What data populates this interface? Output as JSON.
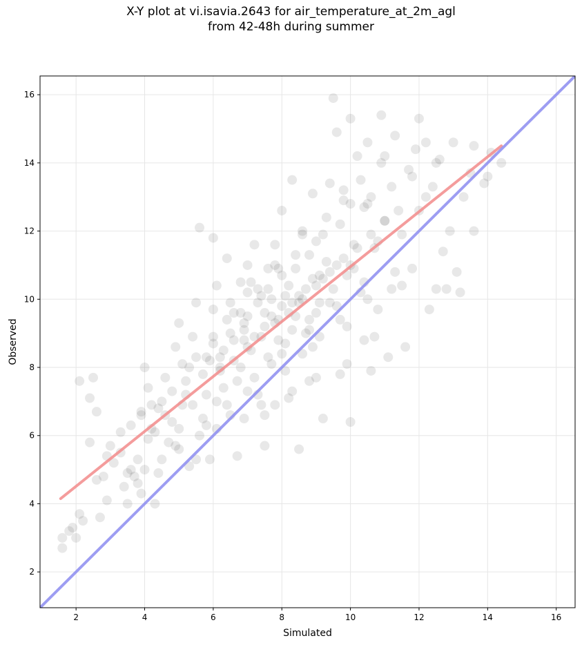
{
  "chart_data": {
    "type": "scatter",
    "title": "X-Y plot at vi.isavia.2643 for air_temperature_at_2m_agl\nfrom 42-48h during summer",
    "xlabel": "Simulated",
    "ylabel": "Observed",
    "xlim": [
      0.95,
      16.55
    ],
    "ylim": [
      0.95,
      16.55
    ],
    "xticks": [
      2,
      4,
      6,
      8,
      10,
      12,
      14,
      16
    ],
    "yticks": [
      2,
      4,
      6,
      8,
      10,
      12,
      14,
      16
    ],
    "grid": true,
    "point_color": "#000000",
    "point_opacity": 0.09,
    "series": [
      {
        "type": "scatter",
        "points": [
          [
            1.6,
            2.7
          ],
          [
            1.6,
            3.0
          ],
          [
            1.8,
            3.2
          ],
          [
            1.9,
            3.3
          ],
          [
            2.0,
            3.0
          ],
          [
            2.1,
            3.7
          ],
          [
            2.2,
            3.5
          ],
          [
            2.1,
            7.6
          ],
          [
            2.4,
            7.1
          ],
          [
            2.5,
            7.7
          ],
          [
            2.6,
            6.7
          ],
          [
            2.4,
            5.8
          ],
          [
            2.6,
            4.7
          ],
          [
            2.7,
            3.6
          ],
          [
            2.8,
            4.8
          ],
          [
            2.9,
            4.1
          ],
          [
            2.9,
            5.4
          ],
          [
            3.0,
            5.7
          ],
          [
            3.1,
            5.2
          ],
          [
            3.3,
            5.5
          ],
          [
            3.3,
            6.1
          ],
          [
            3.4,
            4.5
          ],
          [
            3.5,
            4.0
          ],
          [
            3.5,
            4.9
          ],
          [
            3.6,
            6.3
          ],
          [
            3.7,
            4.8
          ],
          [
            3.8,
            5.3
          ],
          [
            3.8,
            4.6
          ],
          [
            3.9,
            4.3
          ],
          [
            3.9,
            6.7
          ],
          [
            4.0,
            8.0
          ],
          [
            4.1,
            7.4
          ],
          [
            4.2,
            6.9
          ],
          [
            4.3,
            4.0
          ],
          [
            4.4,
            4.9
          ],
          [
            4.5,
            7.0
          ],
          [
            4.6,
            7.7
          ],
          [
            4.8,
            6.4
          ],
          [
            4.9,
            8.6
          ],
          [
            5.0,
            9.3
          ],
          [
            5.1,
            8.1
          ],
          [
            5.2,
            7.2
          ],
          [
            5.3,
            5.1
          ],
          [
            5.4,
            8.9
          ],
          [
            5.5,
            9.9
          ],
          [
            5.6,
            12.1
          ],
          [
            5.7,
            6.5
          ],
          [
            5.8,
            8.3
          ],
          [
            5.9,
            5.3
          ],
          [
            6.0,
            9.7
          ],
          [
            6.0,
            11.8
          ],
          [
            6.1,
            10.4
          ],
          [
            6.2,
            8.0
          ],
          [
            6.3,
            7.4
          ],
          [
            6.4,
            11.2
          ],
          [
            6.5,
            9.9
          ],
          [
            6.6,
            8.8
          ],
          [
            6.7,
            5.4
          ],
          [
            6.8,
            10.5
          ],
          [
            6.9,
            9.3
          ],
          [
            7.0,
            11.0
          ],
          [
            7.0,
            7.3
          ],
          [
            7.1,
            8.5
          ],
          [
            7.2,
            11.6
          ],
          [
            7.3,
            10.3
          ],
          [
            7.4,
            6.9
          ],
          [
            7.5,
            9.6
          ],
          [
            7.5,
            5.7
          ],
          [
            7.6,
            10.9
          ],
          [
            7.7,
            8.1
          ],
          [
            7.8,
            11.6
          ],
          [
            7.8,
            6.9
          ],
          [
            7.9,
            9.4
          ],
          [
            8.0,
            10.7
          ],
          [
            8.0,
            12.6
          ],
          [
            8.1,
            8.7
          ],
          [
            8.2,
            7.1
          ],
          [
            8.3,
            13.5
          ],
          [
            8.3,
            9.9
          ],
          [
            8.4,
            11.3
          ],
          [
            8.5,
            5.6
          ],
          [
            8.6,
            8.4
          ],
          [
            8.6,
            12.0
          ],
          [
            8.7,
            10.3
          ],
          [
            8.8,
            9.4
          ],
          [
            8.8,
            7.6
          ],
          [
            8.9,
            13.1
          ],
          [
            9.0,
            11.7
          ],
          [
            9.1,
            8.9
          ],
          [
            9.1,
            10.7
          ],
          [
            9.2,
            6.5
          ],
          [
            9.3,
            12.4
          ],
          [
            9.4,
            9.9
          ],
          [
            9.4,
            13.4
          ],
          [
            9.5,
            15.9
          ],
          [
            9.6,
            11.0
          ],
          [
            9.6,
            14.9
          ],
          [
            9.7,
            7.8
          ],
          [
            9.8,
            12.9
          ],
          [
            9.9,
            9.2
          ],
          [
            10.0,
            6.4
          ],
          [
            10.0,
            15.3
          ],
          [
            10.1,
            11.6
          ],
          [
            10.2,
            14.2
          ],
          [
            10.3,
            10.2
          ],
          [
            10.4,
            12.7
          ],
          [
            10.4,
            8.8
          ],
          [
            10.5,
            14.6
          ],
          [
            10.6,
            13.0
          ],
          [
            10.6,
            7.9
          ],
          [
            10.7,
            11.5
          ],
          [
            10.8,
            9.7
          ],
          [
            10.9,
            14.0
          ],
          [
            10.9,
            15.4
          ],
          [
            11.0,
            12.3
          ],
          [
            11.1,
            8.3
          ],
          [
            11.2,
            13.3
          ],
          [
            11.2,
            10.3
          ],
          [
            11.3,
            14.8
          ],
          [
            11.5,
            11.9
          ],
          [
            11.6,
            8.6
          ],
          [
            11.7,
            13.8
          ],
          [
            11.8,
            10.9
          ],
          [
            11.9,
            14.4
          ],
          [
            12.0,
            15.3
          ],
          [
            12.0,
            12.6
          ],
          [
            12.2,
            14.6
          ],
          [
            12.3,
            9.7
          ],
          [
            12.4,
            13.3
          ],
          [
            12.5,
            10.3
          ],
          [
            12.6,
            14.1
          ],
          [
            12.7,
            11.4
          ],
          [
            12.8,
            10.3
          ],
          [
            12.9,
            12.0
          ],
          [
            13.0,
            14.6
          ],
          [
            13.1,
            10.8
          ],
          [
            13.2,
            10.2
          ],
          [
            13.3,
            13.0
          ],
          [
            13.5,
            13.7
          ],
          [
            13.6,
            12.0
          ],
          [
            13.6,
            14.5
          ],
          [
            13.9,
            13.4
          ],
          [
            14.0,
            13.6
          ],
          [
            14.1,
            14.3
          ],
          [
            14.4,
            14.0
          ],
          [
            4.1,
            5.9
          ],
          [
            4.3,
            6.1
          ],
          [
            4.7,
            5.8
          ],
          [
            5.0,
            6.2
          ],
          [
            5.4,
            6.9
          ],
          [
            5.8,
            7.2
          ],
          [
            6.2,
            7.9
          ],
          [
            6.6,
            8.2
          ],
          [
            7.0,
            8.6
          ],
          [
            7.4,
            8.9
          ],
          [
            7.8,
            9.3
          ],
          [
            8.2,
            9.6
          ],
          [
            8.6,
            10.0
          ],
          [
            9.0,
            10.4
          ],
          [
            9.4,
            10.8
          ],
          [
            9.8,
            11.2
          ],
          [
            10.2,
            11.5
          ],
          [
            10.6,
            11.9
          ],
          [
            11.0,
            12.3
          ],
          [
            3.6,
            5.0
          ],
          [
            4.4,
            6.8
          ],
          [
            5.2,
            7.6
          ],
          [
            6.0,
            8.7
          ],
          [
            6.8,
            9.6
          ],
          [
            7.6,
            10.3
          ],
          [
            8.4,
            10.9
          ],
          [
            9.2,
            11.9
          ],
          [
            10.0,
            12.8
          ],
          [
            5.6,
            6.0
          ],
          [
            6.4,
            6.9
          ],
          [
            7.2,
            7.7
          ],
          [
            8.0,
            8.4
          ],
          [
            8.8,
            9.1
          ],
          [
            9.6,
            9.8
          ],
          [
            10.4,
            10.5
          ],
          [
            7.0,
            9.5
          ],
          [
            7.5,
            9.2
          ],
          [
            8.0,
            9.8
          ],
          [
            8.5,
            10.1
          ],
          [
            7.2,
            8.9
          ],
          [
            7.7,
            10.0
          ],
          [
            8.2,
            10.4
          ],
          [
            8.7,
            9.0
          ],
          [
            6.5,
            9.0
          ],
          [
            6.8,
            8.0
          ],
          [
            7.3,
            9.9
          ],
          [
            7.9,
            8.8
          ],
          [
            8.4,
            9.5
          ],
          [
            9.0,
            9.6
          ],
          [
            9.5,
            10.3
          ],
          [
            6.3,
            8.5
          ],
          [
            6.9,
            8.8
          ],
          [
            7.4,
            10.1
          ],
          [
            8.1,
            10.1
          ],
          [
            8.9,
            10.6
          ],
          [
            9.3,
            11.1
          ],
          [
            10.0,
            11.0
          ],
          [
            6.1,
            7.0
          ],
          [
            6.7,
            7.6
          ],
          [
            7.6,
            8.3
          ],
          [
            8.3,
            9.1
          ],
          [
            9.1,
            9.9
          ],
          [
            9.9,
            10.7
          ],
          [
            5.5,
            8.3
          ],
          [
            6.0,
            8.9
          ],
          [
            6.6,
            9.6
          ],
          [
            7.1,
            10.5
          ],
          [
            7.9,
            10.9
          ],
          [
            8.8,
            11.3
          ],
          [
            9.7,
            12.2
          ],
          [
            10.5,
            12.8
          ],
          [
            4.8,
            7.3
          ],
          [
            5.3,
            8.0
          ],
          [
            5.9,
            8.2
          ],
          [
            6.4,
            9.4
          ],
          [
            7.0,
            10.2
          ],
          [
            7.8,
            11.0
          ],
          [
            8.6,
            11.9
          ],
          [
            9.8,
            13.2
          ],
          [
            3.9,
            6.6
          ],
          [
            4.2,
            6.2
          ],
          [
            4.6,
            6.6
          ],
          [
            5.1,
            6.9
          ],
          [
            5.7,
            7.8
          ],
          [
            6.2,
            8.3
          ],
          [
            6.9,
            9.1
          ],
          [
            7.7,
            9.5
          ],
          [
            8.5,
            9.9
          ],
          [
            9.2,
            10.6
          ],
          [
            10.1,
            10.9
          ],
          [
            10.8,
            11.7
          ],
          [
            11.4,
            12.6
          ],
          [
            12.2,
            13.0
          ],
          [
            10.3,
            13.5
          ],
          [
            11.0,
            14.2
          ],
          [
            11.8,
            13.6
          ],
          [
            12.5,
            14.0
          ],
          [
            4.5,
            5.3
          ],
          [
            5.0,
            5.6
          ],
          [
            5.8,
            6.3
          ],
          [
            6.5,
            6.6
          ],
          [
            7.3,
            7.2
          ],
          [
            8.1,
            7.9
          ],
          [
            8.9,
            8.6
          ],
          [
            9.7,
            9.4
          ],
          [
            10.5,
            10.0
          ],
          [
            11.3,
            10.8
          ],
          [
            4.0,
            5.0
          ],
          [
            4.9,
            5.7
          ],
          [
            5.5,
            5.3
          ],
          [
            6.1,
            6.2
          ],
          [
            6.9,
            6.5
          ],
          [
            7.5,
            6.6
          ],
          [
            8.3,
            7.3
          ],
          [
            9.0,
            7.7
          ],
          [
            9.9,
            8.1
          ],
          [
            10.7,
            8.9
          ],
          [
            11.5,
            10.4
          ]
        ]
      },
      {
        "type": "line",
        "points": [
          [
            1.55,
            4.15
          ],
          [
            14.4,
            14.5
          ]
        ],
        "color": "#f28b8b",
        "opacity": 0.85
      },
      {
        "type": "line",
        "points": [
          [
            0.95,
            0.95
          ],
          [
            16.55,
            16.55
          ]
        ],
        "color": "#8c8cf0",
        "opacity": 0.85
      }
    ]
  }
}
